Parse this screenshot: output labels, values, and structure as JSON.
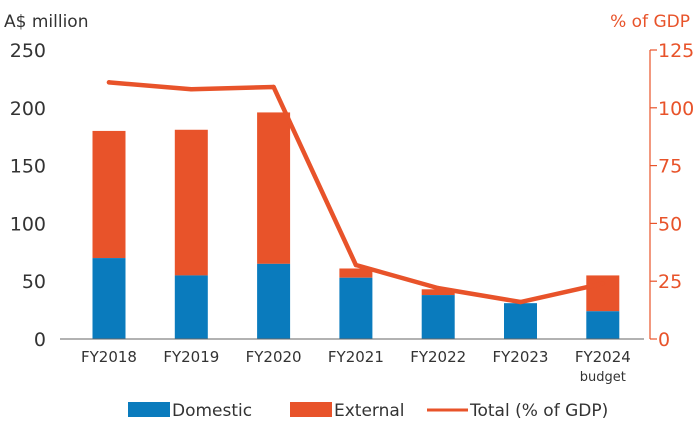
{
  "chart_data": {
    "type": "bar",
    "categories": [
      "FY2018",
      "FY2019",
      "FY2020",
      "FY2021",
      "FY2022",
      "FY2023",
      "FY2024"
    ],
    "category_sublabels": [
      "",
      "",
      "",
      "",
      "",
      "",
      "budget"
    ],
    "series": [
      {
        "name": "Domestic",
        "kind": "bar",
        "axis": "left",
        "color": "#0a7bbd",
        "values": [
          70,
          55,
          65,
          53,
          38,
          31,
          24
        ]
      },
      {
        "name": "External",
        "kind": "bar",
        "axis": "left",
        "color": "#e8532a",
        "values": [
          110,
          126,
          131,
          8,
          5,
          0,
          31
        ]
      },
      {
        "name": "Total (% of GDP)",
        "kind": "line",
        "axis": "right",
        "color": "#e8532a",
        "values": [
          111,
          108,
          109,
          32,
          22,
          16,
          24
        ]
      }
    ],
    "stacked": true,
    "ylabel_left": "A$ million",
    "ylabel_right": "% of GDP",
    "ylim_left": [
      0,
      250
    ],
    "ylim_right": [
      0,
      125
    ],
    "yticks_left": [
      0,
      50,
      100,
      150,
      200,
      250
    ],
    "yticks_right": [
      0,
      25,
      50,
      75,
      100,
      125
    ],
    "grid": false,
    "legend_position": "bottom"
  }
}
